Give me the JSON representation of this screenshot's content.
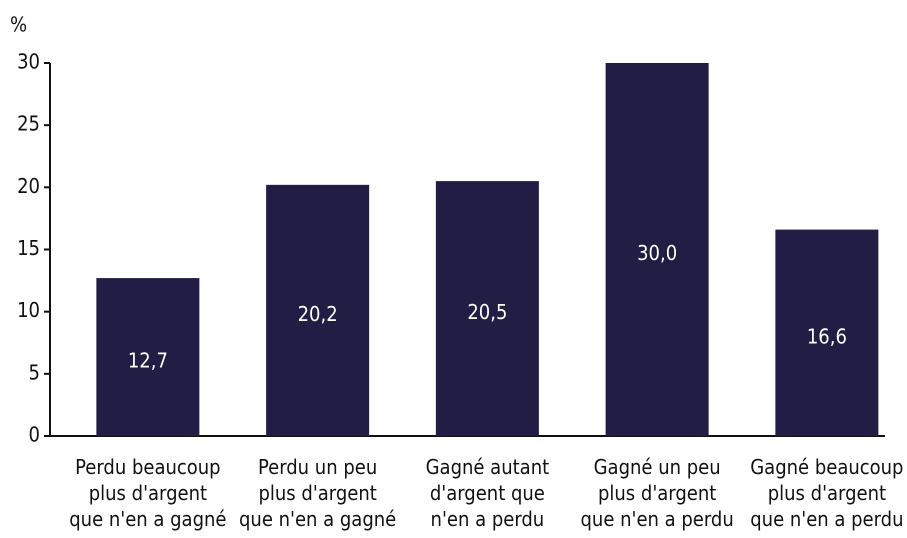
{
  "chart_data": {
    "type": "bar",
    "y_unit": "%",
    "categories": [
      [
        "Perdu beaucoup",
        "plus d'argent",
        "que n'en a gagné"
      ],
      [
        "Perdu un peu",
        "plus d'argent",
        "que n'en a gagné"
      ],
      [
        "Gagné autant",
        "d'argent que",
        "n'en a perdu"
      ],
      [
        "Gagné un peu",
        "plus d'argent",
        "que n'en a perdu"
      ],
      [
        "Gagné beaucoup",
        "plus d'argent",
        "que n'en a perdu"
      ]
    ],
    "values": [
      12.7,
      20.2,
      20.5,
      30.0,
      16.6
    ],
    "value_labels": [
      "12,7",
      "20,2",
      "20,5",
      "30,0",
      "16,6"
    ],
    "color": "#221d45",
    "ylim": [
      0,
      30
    ],
    "yticks": [
      0,
      5,
      10,
      15,
      20,
      25,
      30
    ]
  }
}
